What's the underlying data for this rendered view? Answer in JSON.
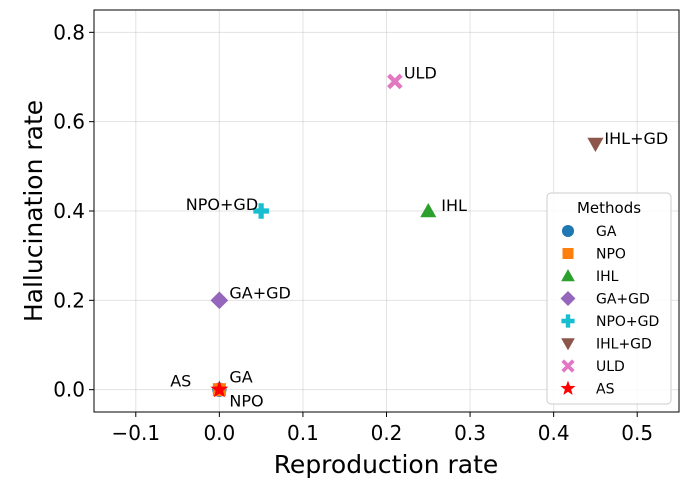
{
  "chart_data": {
    "type": "scatter",
    "title": "",
    "xlabel": "Reproduction rate",
    "ylabel": "Hallucination rate",
    "xlim": [
      -0.15,
      0.55
    ],
    "ylim": [
      -0.05,
      0.85
    ],
    "xticks": [
      -0.1,
      0.0,
      0.1,
      0.2,
      0.3,
      0.4,
      0.5
    ],
    "xtick_labels": [
      "−0.1",
      "0.0",
      "0.1",
      "0.2",
      "0.3",
      "0.4",
      "0.5"
    ],
    "yticks": [
      0.0,
      0.2,
      0.4,
      0.6,
      0.8
    ],
    "ytick_labels": [
      "0.0",
      "0.2",
      "0.4",
      "0.6",
      "0.8"
    ],
    "grid": true,
    "legend": {
      "title": "Methods",
      "placement": "right"
    },
    "series": [
      {
        "name": "GA",
        "x": 0.0,
        "y": 0.0,
        "color": "#1f77b4",
        "marker": "circle",
        "annotation": "GA"
      },
      {
        "name": "NPO",
        "x": 0.0,
        "y": 0.0,
        "color": "#ff7f0e",
        "marker": "square",
        "annotation": "NPO"
      },
      {
        "name": "IHL",
        "x": 0.25,
        "y": 0.4,
        "color": "#2ca02c",
        "marker": "triangle-up",
        "annotation": "IHL"
      },
      {
        "name": "GA+GD",
        "x": 0.0,
        "y": 0.2,
        "color": "#9467bd",
        "marker": "diamond",
        "annotation": "GA+GD"
      },
      {
        "name": "NPO+GD",
        "x": 0.05,
        "y": 0.4,
        "color": "#17becf",
        "marker": "plus",
        "annotation": "NPO+GD"
      },
      {
        "name": "IHL+GD",
        "x": 0.45,
        "y": 0.55,
        "color": "#8c564b",
        "marker": "triangle-down",
        "annotation": "IHL+GD"
      },
      {
        "name": "ULD",
        "x": 0.21,
        "y": 0.69,
        "color": "#e377c2",
        "marker": "x",
        "annotation": "ULD"
      },
      {
        "name": "AS",
        "x": 0.0,
        "y": 0.0,
        "color": "#ff0000",
        "marker": "star",
        "annotation": "AS"
      }
    ]
  }
}
